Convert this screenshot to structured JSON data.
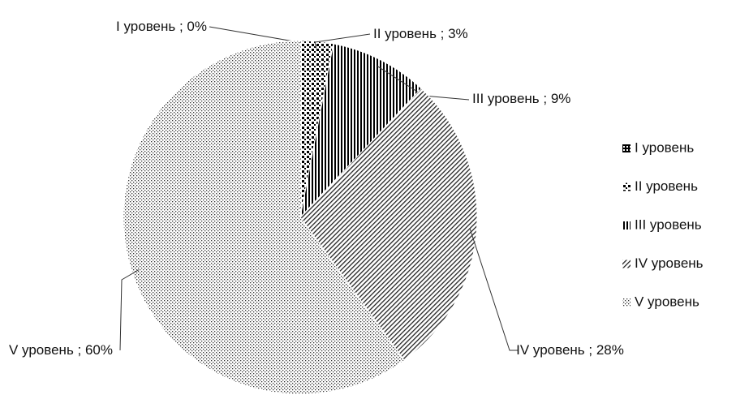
{
  "chart_data": {
    "type": "pie",
    "categories": [
      "I уровень",
      "II уровень",
      "III уровень",
      "IV уровень",
      "V уровень"
    ],
    "values": [
      0,
      3,
      9,
      28,
      60
    ],
    "value_labels": [
      "I уровень ; 0%",
      "II уровень ; 3%",
      "III уровень ; 9%",
      "IV уровень ; 28%",
      "V уровень ; 60%"
    ],
    "legend": "right"
  }
}
